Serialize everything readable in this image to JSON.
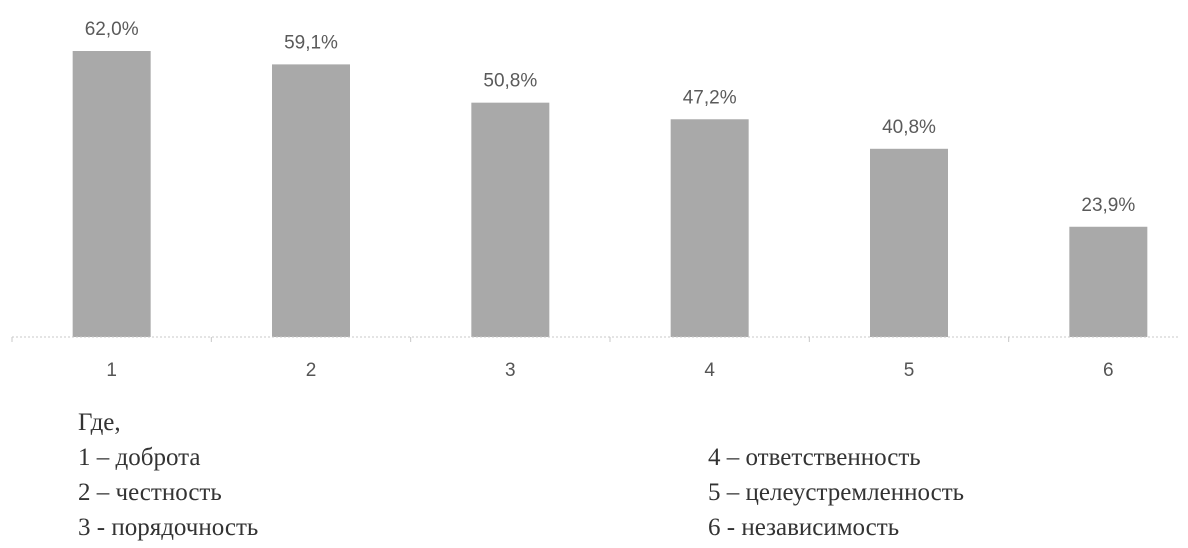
{
  "chart_data": {
    "type": "bar",
    "categories": [
      "1",
      "2",
      "3",
      "4",
      "5",
      "6"
    ],
    "values": [
      62.0,
      59.1,
      50.8,
      47.2,
      40.8,
      23.9
    ],
    "data_labels": [
      "62,0%",
      "59,1%",
      "50,8%",
      "47,2%",
      "40,8%",
      "23,9%"
    ],
    "title": "",
    "xlabel": "",
    "ylabel": "",
    "ylim": [
      0,
      62
    ],
    "grid": false,
    "legend": "none",
    "colors": {
      "bar": "#a9a9a9",
      "axis": "#c8c8c8",
      "label": "#5a5a5a"
    }
  },
  "legend": {
    "heading": "Где,",
    "left_column": [
      "1 – доброта",
      "2 – честность",
      "3 - порядочность"
    ],
    "right_column": [
      "4 – ответственность",
      "5 – целеустремленность",
      "6 - независимость"
    ]
  }
}
